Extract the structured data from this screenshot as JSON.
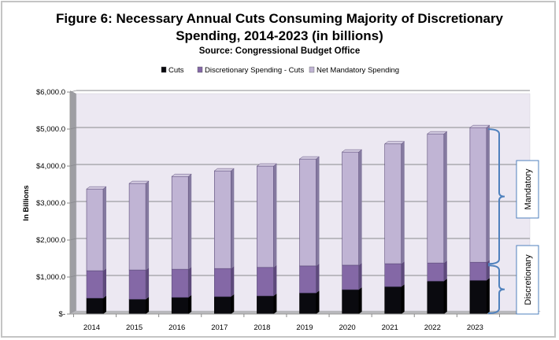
{
  "chart_data": {
    "type": "bar",
    "stacked": true,
    "style": "3d-column",
    "title": "Figure 6: Necessary Annual Cuts Consuming Majority of Discretionary Spending, 2014-2023 (in billions)",
    "title_line1": "Figure 6: Necessary Annual Cuts Consuming Majority of Discretionary",
    "title_line2": "Spending, 2014-2023 (in billions)",
    "subtitle": "Source: Congressional Budget Office",
    "xlabel": "",
    "ylabel": "In Billions",
    "ylim": [
      0,
      6000
    ],
    "yticks": [
      0,
      1000,
      2000,
      3000,
      4000,
      5000,
      6000
    ],
    "ytick_labels": [
      "$-",
      "$1,000.0",
      "$2,000.0",
      "$3,000.0",
      "$4,000.0",
      "$5,000.0",
      "$6,000.0"
    ],
    "grid": true,
    "legend_position": "top",
    "categories": [
      "2014",
      "2015",
      "2016",
      "2017",
      "2018",
      "2019",
      "2020",
      "2021",
      "2022",
      "2023"
    ],
    "series": [
      {
        "name": "Cuts",
        "color": "#0a0a0f",
        "side_color": "#000000",
        "values": [
          430,
          400,
          450,
          470,
          490,
          570,
          660,
          740,
          890,
          910
        ]
      },
      {
        "name": "Discretionary Spending - Cuts",
        "color": "#8468a6",
        "side_color": "#5e4a7c",
        "values": [
          740,
          790,
          760,
          760,
          770,
          730,
          660,
          620,
          490,
          490
        ]
      },
      {
        "name": "Net Mandatory Spending",
        "color": "#c0b4d4",
        "side_color": "#857aa0",
        "values": [
          2210,
          2340,
          2510,
          2640,
          2740,
          2890,
          3060,
          3240,
          3490,
          3640
        ]
      }
    ],
    "annotations": [
      {
        "label": "Mandatory",
        "type": "brace",
        "applies_to": "2023 Net Mandatory Spending"
      },
      {
        "label": "Discretionary",
        "type": "brace",
        "applies_to": "2023 Cuts + Discretionary Spending - Cuts"
      }
    ]
  },
  "colors": {
    "wall": "#ece8f2",
    "side_wall": "#9e9ea3",
    "floor": "#b8b8bc",
    "gridline": "#8a8a8e",
    "brace": "#4f81bd",
    "annotation_border": "#4f81bd",
    "frame": "#c4c4c4"
  }
}
